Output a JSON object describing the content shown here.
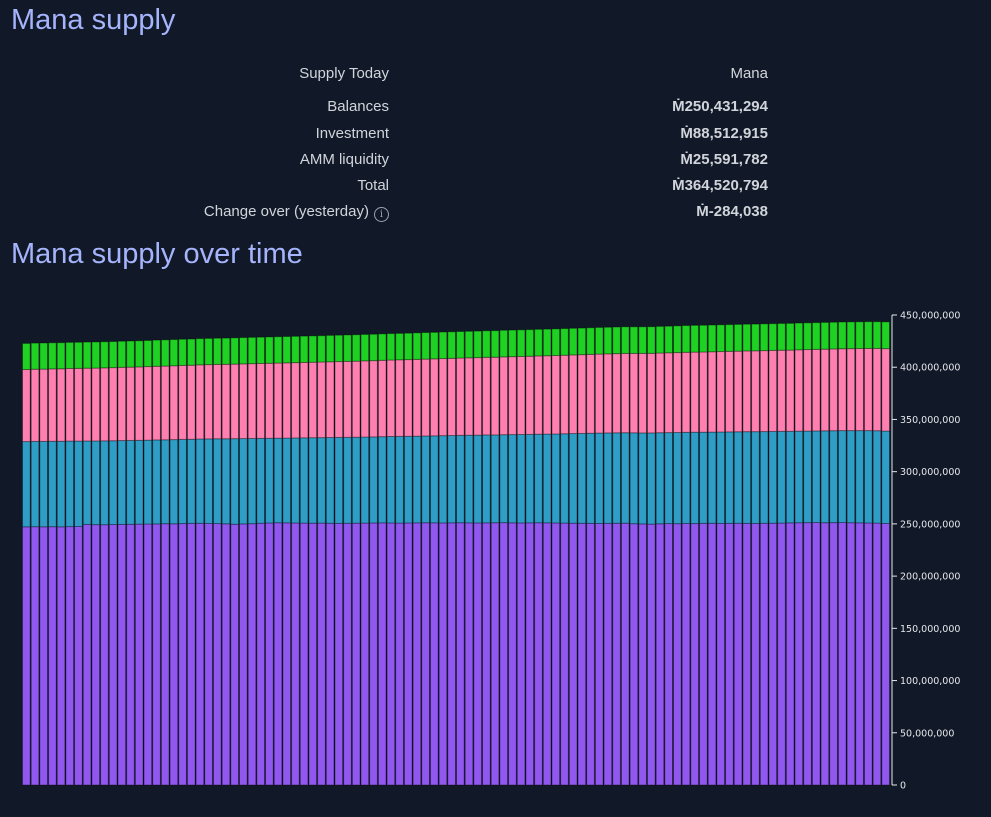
{
  "title": "Mana supply",
  "table": {
    "header": {
      "label": "Supply Today",
      "value": "Mana"
    },
    "rows": [
      {
        "label": "Balances",
        "value": "Ṁ250,431,294"
      },
      {
        "label": "Investment",
        "value": "Ṁ88,512,915"
      },
      {
        "label": "AMM liquidity",
        "value": "Ṁ25,591,782"
      },
      {
        "label": "Total",
        "value": "Ṁ364,520,794"
      },
      {
        "label": "Change over (yesterday)",
        "value": "Ṁ-284,038",
        "info_icon": "info-icon",
        "info_glyph": "i"
      }
    ]
  },
  "chart_title": "Mana supply over time",
  "chart_data": {
    "type": "bar",
    "stacked": true,
    "unit": "millions of mana",
    "ylim": [
      0,
      450
    ],
    "yticks": [
      0,
      50,
      100,
      150,
      200,
      250,
      300,
      350,
      400,
      450
    ],
    "ytick_labels": [
      "0",
      "50,000,000",
      "100,000,000",
      "150,000,000",
      "200,000,000",
      "250,000,000",
      "300,000,000",
      "350,000,000",
      "400,000,000",
      "450,000,000"
    ],
    "axis_position": "right",
    "series": [
      {
        "color": "#9158ef",
        "values": [
          247.2,
          247.3,
          247.2,
          247.3,
          247.2,
          247.4,
          247.5,
          249.5,
          249.3,
          249.2,
          249.4,
          249.5,
          249.6,
          249.8,
          249.9,
          250.0,
          250.2,
          250.1,
          250.3,
          250.5,
          250.6,
          250.4,
          250.3,
          250.1,
          249.7,
          250.0,
          250.2,
          250.6,
          250.9,
          251.1,
          251.0,
          250.9,
          250.8,
          250.7,
          250.8,
          250.6,
          250.5,
          250.6,
          250.7,
          250.8,
          250.9,
          251.0,
          250.9,
          250.8,
          250.9,
          251.0,
          251.1,
          251.0,
          250.9,
          251.0,
          251.1,
          251.0,
          250.9,
          251.0,
          251.1,
          251.2,
          251.0,
          250.9,
          251.0,
          251.1,
          251.0,
          250.9,
          250.8,
          250.7,
          250.6,
          250.5,
          250.4,
          250.5,
          250.6,
          250.7,
          250.2,
          250.0,
          249.8,
          250.1,
          250.3,
          250.2,
          250.4,
          250.3,
          250.5,
          250.6,
          250.4,
          250.5,
          250.6,
          250.5,
          250.4,
          250.6,
          250.7,
          250.8,
          251.0,
          251.1,
          251.2,
          251.3,
          251.1,
          251.2,
          251.3,
          251.1,
          251.0,
          250.9,
          250.8,
          250.4
        ]
      },
      {
        "color": "#2f9ec6",
        "values": [
          81.6,
          81.7,
          81.8,
          81.8,
          81.9,
          81.9,
          81.8,
          79.9,
          80.1,
          80.3,
          80.2,
          80.3,
          80.3,
          80.2,
          80.3,
          80.4,
          80.3,
          80.6,
          80.6,
          80.5,
          80.7,
          81.0,
          81.2,
          81.4,
          81.9,
          81.7,
          81.6,
          81.3,
          81.1,
          81.0,
          81.2,
          81.4,
          81.6,
          81.8,
          81.8,
          82.1,
          82.3,
          82.3,
          82.3,
          82.4,
          82.4,
          82.5,
          82.8,
          83.0,
          83.0,
          83.0,
          83.1,
          83.3,
          83.6,
          83.6,
          83.7,
          83.9,
          84.1,
          84.2,
          84.1,
          84.2,
          84.5,
          84.7,
          84.7,
          84.8,
          85.0,
          85.2,
          85.5,
          85.8,
          86.0,
          86.3,
          86.6,
          86.6,
          86.6,
          86.6,
          87.0,
          87.1,
          87.3,
          87.2,
          87.1,
          87.3,
          87.3,
          87.5,
          87.3,
          87.3,
          87.6,
          87.6,
          87.6,
          87.8,
          87.9,
          87.8,
          87.8,
          87.8,
          87.6,
          87.7,
          87.7,
          87.7,
          88.0,
          88.0,
          88.0,
          88.2,
          88.3,
          88.4,
          88.4,
          88.5
        ]
      },
      {
        "color": "#ff80b0",
        "values": [
          69.0,
          69.1,
          69.2,
          69.3,
          69.4,
          69.5,
          69.6,
          69.7,
          69.8,
          69.9,
          70.0,
          70.1,
          70.2,
          70.3,
          70.4,
          70.5,
          70.6,
          70.7,
          70.8,
          70.9,
          71.0,
          71.1,
          71.2,
          71.3,
          71.4,
          71.5,
          71.6,
          71.7,
          71.8,
          71.9,
          72.0,
          72.1,
          72.2,
          72.3,
          72.4,
          72.5,
          72.6,
          72.7,
          72.8,
          72.9,
          73.0,
          73.1,
          73.2,
          73.3,
          73.4,
          73.5,
          73.6,
          73.7,
          73.8,
          73.9,
          74.0,
          74.1,
          74.2,
          74.3,
          74.4,
          74.5,
          74.6,
          74.7,
          74.8,
          74.9,
          75.0,
          75.1,
          75.2,
          75.3,
          75.4,
          75.5,
          75.6,
          75.7,
          75.8,
          75.9,
          76.0,
          76.1,
          76.2,
          76.3,
          76.4,
          76.5,
          76.6,
          76.7,
          76.8,
          76.9,
          77.0,
          77.1,
          77.2,
          77.3,
          77.4,
          77.5,
          77.6,
          77.7,
          77.8,
          77.9,
          78.0,
          78.1,
          78.2,
          78.3,
          78.4,
          78.5,
          78.6,
          78.7,
          78.8,
          78.9
        ]
      },
      {
        "color": "#1ed122",
        "values": [
          25.0,
          25.0,
          25.0,
          25.0,
          25.0,
          25.0,
          25.0,
          25.0,
          25.0,
          25.0,
          25.0,
          25.0,
          25.0,
          25.0,
          25.0,
          25.1,
          25.1,
          25.1,
          25.1,
          25.1,
          25.1,
          25.1,
          25.1,
          25.1,
          25.1,
          25.2,
          25.2,
          25.2,
          25.2,
          25.2,
          25.2,
          25.2,
          25.2,
          25.2,
          25.2,
          25.3,
          25.3,
          25.3,
          25.3,
          25.3,
          25.3,
          25.3,
          25.3,
          25.3,
          25.3,
          25.4,
          25.4,
          25.4,
          25.4,
          25.4,
          25.4,
          25.4,
          25.4,
          25.4,
          25.4,
          25.5,
          25.5,
          25.5,
          25.5,
          25.5,
          25.5,
          25.5,
          25.5,
          25.5,
          25.5,
          25.5,
          25.5,
          25.5,
          25.5,
          25.5,
          25.5,
          25.5,
          25.5,
          25.5,
          25.5,
          25.6,
          25.6,
          25.6,
          25.6,
          25.6,
          25.6,
          25.6,
          25.6,
          25.6,
          25.6,
          25.6,
          25.6,
          25.6,
          25.6,
          25.6,
          25.6,
          25.6,
          25.6,
          25.6,
          25.6,
          25.6,
          25.6,
          25.6,
          25.6,
          25.6
        ]
      }
    ]
  }
}
